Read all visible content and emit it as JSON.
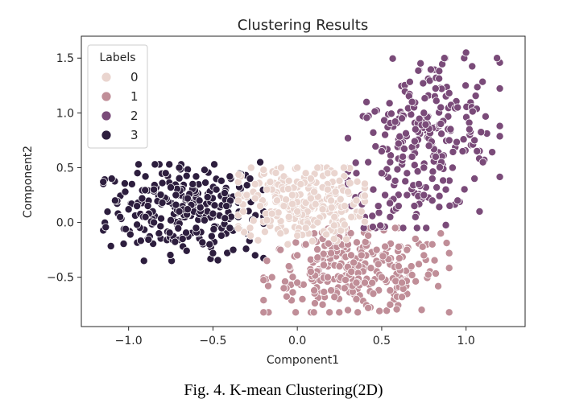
{
  "caption": "Fig. 4. K-mean Clustering(2D)",
  "chart_data": {
    "type": "scatter",
    "title": "Clustering Results",
    "xlabel": "Component1",
    "ylabel": "Component2",
    "xlim": [
      -1.28,
      1.35
    ],
    "ylim": [
      -0.95,
      1.7
    ],
    "xticks": [
      -1.0,
      -0.5,
      0.0,
      0.5,
      1.0
    ],
    "xtick_labels": [
      "−1.0",
      "−0.5",
      "0.0",
      "0.5",
      "1.0"
    ],
    "yticks": [
      -0.5,
      0.0,
      0.5,
      1.0,
      1.5
    ],
    "ytick_labels": [
      "−0.5",
      "0.0",
      "0.5",
      "1.0",
      "1.5"
    ],
    "grid": false,
    "legend": {
      "title": "Labels",
      "placement": "top-left",
      "entries": [
        "0",
        "1",
        "2",
        "3"
      ]
    },
    "series": [
      {
        "name": "0",
        "color": "#ead5cf",
        "cluster_spread": {
          "x": [
            -0.35,
            0.4
          ],
          "y": [
            -0.2,
            0.55
          ]
        },
        "points": [
          [
            -0.32,
            0.1
          ],
          [
            -0.3,
            0.25
          ],
          [
            -0.28,
            -0.05
          ],
          [
            -0.25,
            0.35
          ],
          [
            -0.22,
            0.15
          ],
          [
            -0.2,
            0.48
          ],
          [
            -0.18,
            0.02
          ],
          [
            -0.15,
            0.3
          ],
          [
            -0.12,
            0.2
          ],
          [
            -0.1,
            -0.1
          ],
          [
            -0.08,
            0.42
          ],
          [
            -0.05,
            0.05
          ],
          [
            -0.03,
            0.25
          ],
          [
            0.0,
            0.5
          ],
          [
            0.0,
            0.1
          ],
          [
            0.02,
            0.35
          ],
          [
            0.05,
            -0.05
          ],
          [
            0.05,
            0.18
          ],
          [
            0.08,
            0.4
          ],
          [
            0.1,
            0.28
          ],
          [
            0.1,
            0.02
          ],
          [
            0.12,
            0.5
          ],
          [
            0.15,
            0.12
          ],
          [
            0.15,
            0.32
          ],
          [
            0.18,
            0.45
          ],
          [
            0.2,
            0.2
          ],
          [
            0.22,
            0.05
          ],
          [
            0.25,
            0.38
          ],
          [
            0.28,
            0.15
          ],
          [
            0.3,
            0.28
          ],
          [
            0.32,
            0.05
          ],
          [
            0.35,
            0.2
          ],
          [
            0.38,
            0.1
          ],
          [
            -0.15,
            0.08
          ],
          [
            -0.05,
            0.38
          ],
          [
            0.08,
            0.22
          ],
          [
            0.18,
            0.3
          ],
          [
            -0.25,
            0.22
          ],
          [
            0.0,
            -0.12
          ],
          [
            0.12,
            0.0
          ],
          [
            0.22,
            0.45
          ],
          [
            -0.08,
            0.15
          ],
          [
            0.28,
            -0.02
          ],
          [
            0.05,
            0.45
          ],
          [
            -0.18,
            0.3
          ]
        ]
      },
      {
        "name": "1",
        "color": "#c08e98",
        "cluster_spread": {
          "x": [
            -0.2,
            0.9
          ],
          "y": [
            -0.82,
            0.0
          ]
        },
        "points": [
          [
            -0.18,
            -0.35
          ],
          [
            -0.15,
            -0.5
          ],
          [
            -0.1,
            -0.25
          ],
          [
            -0.08,
            -0.6
          ],
          [
            -0.05,
            -0.4
          ],
          [
            0.0,
            -0.3
          ],
          [
            0.0,
            -0.55
          ],
          [
            0.03,
            -0.7
          ],
          [
            0.05,
            -0.2
          ],
          [
            0.08,
            -0.45
          ],
          [
            0.1,
            -0.62
          ],
          [
            0.12,
            -0.32
          ],
          [
            0.15,
            -0.75
          ],
          [
            0.15,
            -0.15
          ],
          [
            0.18,
            -0.5
          ],
          [
            0.2,
            -0.28
          ],
          [
            0.22,
            -0.68
          ],
          [
            0.25,
            -0.4
          ],
          [
            0.28,
            -0.6
          ],
          [
            0.3,
            -0.8
          ],
          [
            0.3,
            -0.2
          ],
          [
            0.32,
            -0.45
          ],
          [
            0.35,
            -0.7
          ],
          [
            0.38,
            -0.3
          ],
          [
            0.4,
            -0.55
          ],
          [
            0.42,
            -0.12
          ],
          [
            0.45,
            -0.65
          ],
          [
            0.48,
            -0.38
          ],
          [
            0.5,
            -0.5
          ],
          [
            0.52,
            -0.22
          ],
          [
            0.55,
            -0.62
          ],
          [
            0.58,
            -0.05
          ],
          [
            0.6,
            -0.4
          ],
          [
            0.62,
            -0.55
          ],
          [
            0.65,
            -0.25
          ],
          [
            0.68,
            -0.48
          ],
          [
            0.7,
            -0.15
          ],
          [
            0.72,
            -0.38
          ],
          [
            0.75,
            -0.3
          ],
          [
            0.8,
            -0.2
          ],
          [
            0.85,
            -0.1
          ],
          [
            0.9,
            -0.28
          ],
          [
            0.25,
            -0.05
          ],
          [
            0.1,
            -0.1
          ],
          [
            0.42,
            -0.78
          ],
          [
            0.55,
            -0.75
          ],
          [
            0.62,
            -0.68
          ],
          [
            0.35,
            -0.55
          ],
          [
            0.47,
            -0.25
          ],
          [
            0.2,
            -0.62
          ]
        ]
      },
      {
        "name": "2",
        "color": "#7a4b79",
        "cluster_spread": {
          "x": [
            0.3,
            1.2
          ],
          "y": [
            -0.05,
            1.55
          ]
        },
        "points": [
          [
            0.3,
            0.35
          ],
          [
            0.32,
            0.15
          ],
          [
            0.35,
            0.45
          ],
          [
            0.38,
            0.25
          ],
          [
            0.4,
            0.05
          ],
          [
            0.42,
            0.55
          ],
          [
            0.45,
            0.3
          ],
          [
            0.45,
            0.82
          ],
          [
            0.48,
            0.15
          ],
          [
            0.5,
            0.45
          ],
          [
            0.5,
            0.65
          ],
          [
            0.52,
            0.25
          ],
          [
            0.55,
            0.05
          ],
          [
            0.55,
            0.55
          ],
          [
            0.58,
            0.38
          ],
          [
            0.6,
            0.72
          ],
          [
            0.6,
            0.15
          ],
          [
            0.62,
            0.95
          ],
          [
            0.65,
            0.45
          ],
          [
            0.65,
            0.25
          ],
          [
            0.68,
            0.6
          ],
          [
            0.7,
            0.85
          ],
          [
            0.7,
            0.05
          ],
          [
            0.72,
            0.35
          ],
          [
            0.75,
            0.5
          ],
          [
            0.75,
            1.0
          ],
          [
            0.78,
            0.7
          ],
          [
            0.8,
            0.2
          ],
          [
            0.8,
            0.4
          ],
          [
            0.82,
            0.6
          ],
          [
            0.85,
            0.9
          ],
          [
            0.85,
            1.05
          ],
          [
            0.88,
            0.3
          ],
          [
            0.9,
            0.75
          ],
          [
            0.9,
            1.18
          ],
          [
            0.92,
            0.5
          ],
          [
            0.95,
            0.2
          ],
          [
            0.98,
            0.65
          ],
          [
            1.0,
            1.55
          ],
          [
            1.02,
            0.85
          ],
          [
            1.05,
            0.4
          ],
          [
            1.08,
            0.1
          ],
          [
            1.1,
            0.55
          ],
          [
            1.2,
            0.88
          ],
          [
            1.05,
            0.75
          ],
          [
            0.58,
            0.92
          ],
          [
            0.68,
            1.1
          ],
          [
            0.52,
            0.8
          ],
          [
            0.95,
            1.05
          ],
          [
            0.75,
            0.25
          ]
        ]
      },
      {
        "name": "3",
        "color": "#2d1e3e",
        "cluster_spread": {
          "x": [
            -1.15,
            -0.2
          ],
          "y": [
            -0.35,
            0.58
          ]
        },
        "points": [
          [
            -1.1,
            0.4
          ],
          [
            -1.08,
            0.2
          ],
          [
            -1.05,
            0.05
          ],
          [
            -1.02,
            0.28
          ],
          [
            -1.0,
            0.12
          ],
          [
            -0.98,
            0.35
          ],
          [
            -0.95,
            -0.02
          ],
          [
            -0.92,
            0.22
          ],
          [
            -0.9,
            0.42
          ],
          [
            -0.88,
            0.08
          ],
          [
            -0.85,
            0.3
          ],
          [
            -0.82,
            -0.1
          ],
          [
            -0.8,
            0.18
          ],
          [
            -0.78,
            0.45
          ],
          [
            -0.75,
            0.02
          ],
          [
            -0.72,
            0.25
          ],
          [
            -0.7,
            0.5
          ],
          [
            -0.68,
            -0.15
          ],
          [
            -0.65,
            0.12
          ],
          [
            -0.62,
            0.35
          ],
          [
            -0.6,
            -0.05
          ],
          [
            -0.58,
            0.2
          ],
          [
            -0.55,
            0.48
          ],
          [
            -0.52,
            -0.2
          ],
          [
            -0.5,
            0.08
          ],
          [
            -0.48,
            0.3
          ],
          [
            -0.45,
            -0.12
          ],
          [
            -0.42,
            0.15
          ],
          [
            -0.4,
            0.42
          ],
          [
            -0.38,
            -0.25
          ],
          [
            -0.35,
            0.05
          ],
          [
            -0.32,
            0.25
          ],
          [
            -0.3,
            -0.1
          ],
          [
            -0.28,
            0.4
          ],
          [
            -0.25,
            -0.3
          ],
          [
            -0.22,
            0.55
          ],
          [
            -0.2,
            0.1
          ],
          [
            -0.95,
            0.15
          ],
          [
            -0.85,
            0.0
          ],
          [
            -0.75,
            0.32
          ],
          [
            -0.65,
            0.22
          ],
          [
            -0.55,
            0.02
          ],
          [
            -0.45,
            0.38
          ],
          [
            -0.35,
            0.18
          ],
          [
            -0.6,
            0.42
          ],
          [
            -0.7,
            0.1
          ],
          [
            -0.5,
            -0.28
          ],
          [
            -0.8,
            0.36
          ],
          [
            -0.9,
            0.05
          ],
          [
            -0.4,
            -0.05
          ]
        ]
      }
    ]
  }
}
